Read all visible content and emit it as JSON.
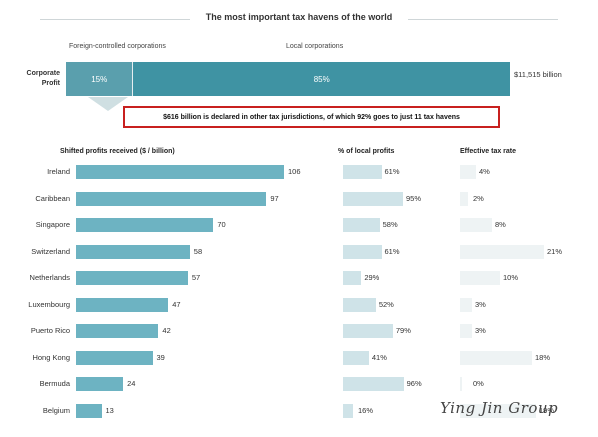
{
  "chart_data": {
    "type": "bar",
    "title": "The most important tax havens of the world",
    "corporate_profit": {
      "label": "Corporate Profit",
      "segments": [
        {
          "name": "Foreign-controlled corporations",
          "value_pct": 15,
          "label": "15%"
        },
        {
          "name": "Local corporations",
          "value_pct": 85,
          "label": "85%"
        }
      ],
      "total_label": "$11,515 billion"
    },
    "callout": "$616 billion is declared in other tax jurisdictions, of which 92% goes to just 11 tax havens",
    "columns": {
      "shifted": "Shifted profits received ($ / billion)",
      "local": "% of local profits",
      "tax": "Effective tax rate"
    },
    "categories": [
      "Ireland",
      "Caribbean",
      "Singapore",
      "Switzerland",
      "Netherlands",
      "Luxembourg",
      "Puerto Rico",
      "Hong Kong",
      "Bermuda",
      "Belgium"
    ],
    "series": [
      {
        "name": "Shifted profits received ($ / billion)",
        "values": [
          106,
          97,
          70,
          58,
          57,
          47,
          42,
          39,
          24,
          13
        ]
      },
      {
        "name": "% of local profits",
        "values": [
          61,
          95,
          58,
          61,
          29,
          52,
          79,
          41,
          96,
          16
        ]
      },
      {
        "name": "Effective tax rate",
        "values": [
          4,
          2,
          8,
          21,
          10,
          3,
          3,
          18,
          0,
          19
        ]
      }
    ],
    "watermark": "Ying Jin Group"
  },
  "colors": {
    "bar_main": "#6db3c2",
    "bar_light": "#cfe3e8",
    "bar_faint": "#eef3f4",
    "callout_border": "#c8201f",
    "profit_dark": "#3f93a3"
  }
}
